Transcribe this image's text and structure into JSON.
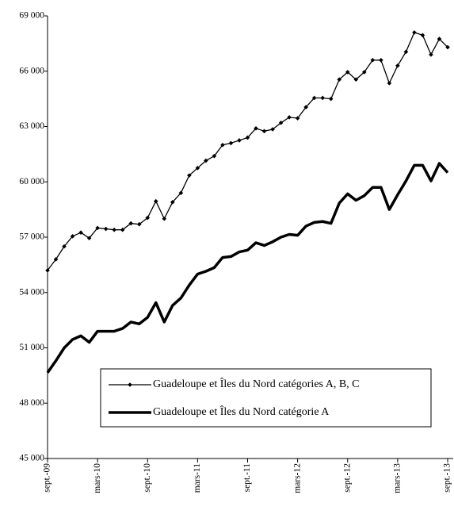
{
  "chart_data": {
    "type": "line",
    "categories": [
      "sept.-09",
      null,
      null,
      null,
      null,
      null,
      "mars-10",
      null,
      null,
      null,
      null,
      null,
      "sept.-10",
      null,
      null,
      null,
      null,
      null,
      "mars-11",
      null,
      null,
      null,
      null,
      null,
      "sept.-11",
      null,
      null,
      null,
      null,
      null,
      "mars-12",
      null,
      null,
      null,
      null,
      null,
      "sept.-12",
      null,
      null,
      null,
      null,
      null,
      "mars-13",
      null,
      null,
      null,
      null,
      null,
      "sept.-13"
    ],
    "series": [
      {
        "name": "Guadeloupe et Îles du Nord catégories A, B, C",
        "color": "#000000",
        "marker": "diamond",
        "values": [
          55200,
          55800,
          56500,
          57050,
          57250,
          56950,
          57500,
          57450,
          57400,
          57400,
          57750,
          57700,
          58050,
          58950,
          58000,
          58900,
          59400,
          60350,
          60750,
          61150,
          61400,
          62000,
          62100,
          62250,
          62400,
          62900,
          62750,
          62850,
          63200,
          63500,
          63450,
          64050,
          64550,
          64550,
          64500,
          65550,
          65950,
          65550,
          65950,
          66600,
          66600,
          65350,
          66300,
          67050,
          68100,
          67950,
          66900,
          67750,
          67300
        ]
      },
      {
        "name": "Guadeloupe et Îles du Nord catégorie A",
        "color": "#000000",
        "marker": "none",
        "values": [
          49650,
          50300,
          51000,
          51450,
          51650,
          51300,
          51900,
          51900,
          51900,
          52050,
          52400,
          52300,
          52650,
          53450,
          52400,
          53300,
          53700,
          54400,
          55000,
          55150,
          55350,
          55900,
          55950,
          56200,
          56300,
          56700,
          56550,
          56750,
          57000,
          57150,
          57100,
          57600,
          57800,
          57850,
          57750,
          58850,
          59350,
          59000,
          59250,
          59700,
          59700,
          58500,
          59300,
          60050,
          60900,
          60900,
          60050,
          61000,
          60500
        ]
      }
    ],
    "ylim": [
      45000,
      69000
    ],
    "yticks": [
      {
        "value": 45000,
        "label": "45 000"
      },
      {
        "value": 48000,
        "label": "48 000"
      },
      {
        "value": 51000,
        "label": "51 000"
      },
      {
        "value": 54000,
        "label": "54 000"
      },
      {
        "value": 57000,
        "label": "57 000"
      },
      {
        "value": 60000,
        "label": "60 000"
      },
      {
        "value": 63000,
        "label": "63 000"
      },
      {
        "value": 66000,
        "label": "66 000"
      },
      {
        "value": 69000,
        "label": "69 000"
      }
    ],
    "grid": false,
    "legend": "lower right"
  }
}
